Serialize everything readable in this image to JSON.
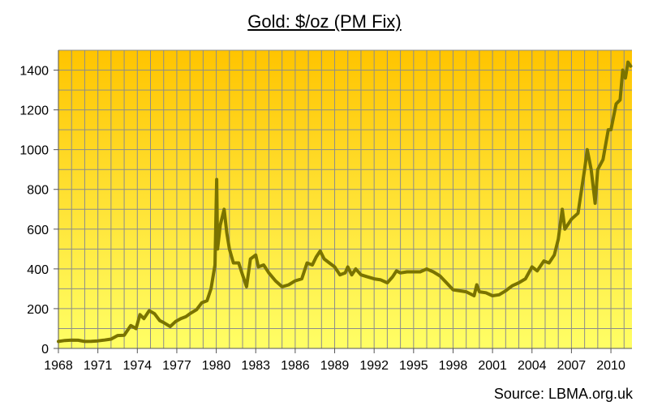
{
  "colors": {
    "plot_top": "#ffc400",
    "plot_bottom": "#ffff66",
    "line": "#7a7300",
    "grid": "#8c8c8c"
  },
  "chart_data": {
    "type": "line",
    "title": "Gold: $/oz (PM Fix)",
    "source": "Source: LBMA.org.uk",
    "xlabel": "",
    "ylabel": "",
    "xlim": [
      1968,
      2011.6
    ],
    "ylim": [
      0,
      1500
    ],
    "grid": true,
    "x_ticks": [
      "1968",
      "1971",
      "1974",
      "1977",
      "1980",
      "1983",
      "1986",
      "1989",
      "1992",
      "1995",
      "1998",
      "2001",
      "2004",
      "2007",
      "2010"
    ],
    "y_ticks": [
      "0",
      "200",
      "400",
      "600",
      "800",
      "1000",
      "1200",
      "1400"
    ],
    "series": [
      {
        "values": [
          [
            1968.0,
            35
          ],
          [
            1968.5,
            40
          ],
          [
            1969.0,
            42
          ],
          [
            1969.5,
            41
          ],
          [
            1970.0,
            35
          ],
          [
            1970.5,
            36
          ],
          [
            1971.0,
            38
          ],
          [
            1971.5,
            42
          ],
          [
            1972.0,
            47
          ],
          [
            1972.5,
            65
          ],
          [
            1973.0,
            66
          ],
          [
            1973.5,
            115
          ],
          [
            1973.9,
            100
          ],
          [
            1974.2,
            170
          ],
          [
            1974.5,
            150
          ],
          [
            1974.9,
            190
          ],
          [
            1975.3,
            175
          ],
          [
            1975.7,
            140
          ],
          [
            1976.0,
            130
          ],
          [
            1976.5,
            110
          ],
          [
            1976.9,
            135
          ],
          [
            1977.3,
            150
          ],
          [
            1977.7,
            160
          ],
          [
            1978.0,
            175
          ],
          [
            1978.5,
            195
          ],
          [
            1978.9,
            230
          ],
          [
            1979.3,
            240
          ],
          [
            1979.6,
            300
          ],
          [
            1979.9,
            420
          ],
          [
            1980.03,
            850
          ],
          [
            1980.1,
            500
          ],
          [
            1980.3,
            620
          ],
          [
            1980.6,
            700
          ],
          [
            1980.8,
            580
          ],
          [
            1981.0,
            500
          ],
          [
            1981.3,
            430
          ],
          [
            1981.7,
            430
          ],
          [
            1982.0,
            370
          ],
          [
            1982.3,
            310
          ],
          [
            1982.6,
            450
          ],
          [
            1983.0,
            470
          ],
          [
            1983.2,
            410
          ],
          [
            1983.6,
            420
          ],
          [
            1984.0,
            380
          ],
          [
            1984.5,
            340
          ],
          [
            1985.0,
            310
          ],
          [
            1985.5,
            320
          ],
          [
            1986.0,
            340
          ],
          [
            1986.5,
            350
          ],
          [
            1986.9,
            430
          ],
          [
            1987.3,
            420
          ],
          [
            1987.6,
            460
          ],
          [
            1987.9,
            490
          ],
          [
            1988.2,
            450
          ],
          [
            1988.6,
            430
          ],
          [
            1989.0,
            410
          ],
          [
            1989.4,
            370
          ],
          [
            1989.8,
            380
          ],
          [
            1990.0,
            410
          ],
          [
            1990.3,
            370
          ],
          [
            1990.6,
            400
          ],
          [
            1991.0,
            370
          ],
          [
            1991.5,
            360
          ],
          [
            1992.0,
            350
          ],
          [
            1992.5,
            345
          ],
          [
            1993.0,
            330
          ],
          [
            1993.4,
            360
          ],
          [
            1993.7,
            390
          ],
          [
            1994.0,
            380
          ],
          [
            1994.5,
            385
          ],
          [
            1995.0,
            385
          ],
          [
            1995.5,
            385
          ],
          [
            1996.0,
            400
          ],
          [
            1996.5,
            385
          ],
          [
            1997.0,
            365
          ],
          [
            1997.5,
            330
          ],
          [
            1998.0,
            295
          ],
          [
            1998.5,
            290
          ],
          [
            1999.0,
            285
          ],
          [
            1999.6,
            265
          ],
          [
            1999.8,
            320
          ],
          [
            2000.0,
            285
          ],
          [
            2000.5,
            280
          ],
          [
            2001.0,
            265
          ],
          [
            2001.5,
            270
          ],
          [
            2002.0,
            290
          ],
          [
            2002.5,
            315
          ],
          [
            2003.0,
            330
          ],
          [
            2003.5,
            350
          ],
          [
            2004.0,
            410
          ],
          [
            2004.4,
            390
          ],
          [
            2004.9,
            440
          ],
          [
            2005.3,
            430
          ],
          [
            2005.7,
            470
          ],
          [
            2006.0,
            550
          ],
          [
            2006.3,
            700
          ],
          [
            2006.5,
            600
          ],
          [
            2007.0,
            650
          ],
          [
            2007.5,
            680
          ],
          [
            2008.0,
            900
          ],
          [
            2008.2,
            1000
          ],
          [
            2008.5,
            900
          ],
          [
            2008.8,
            730
          ],
          [
            2009.0,
            900
          ],
          [
            2009.4,
            950
          ],
          [
            2009.8,
            1100
          ],
          [
            2010.0,
            1100
          ],
          [
            2010.4,
            1230
          ],
          [
            2010.7,
            1250
          ],
          [
            2010.9,
            1400
          ],
          [
            2011.1,
            1360
          ],
          [
            2011.3,
            1440
          ],
          [
            2011.5,
            1420
          ]
        ]
      }
    ]
  }
}
